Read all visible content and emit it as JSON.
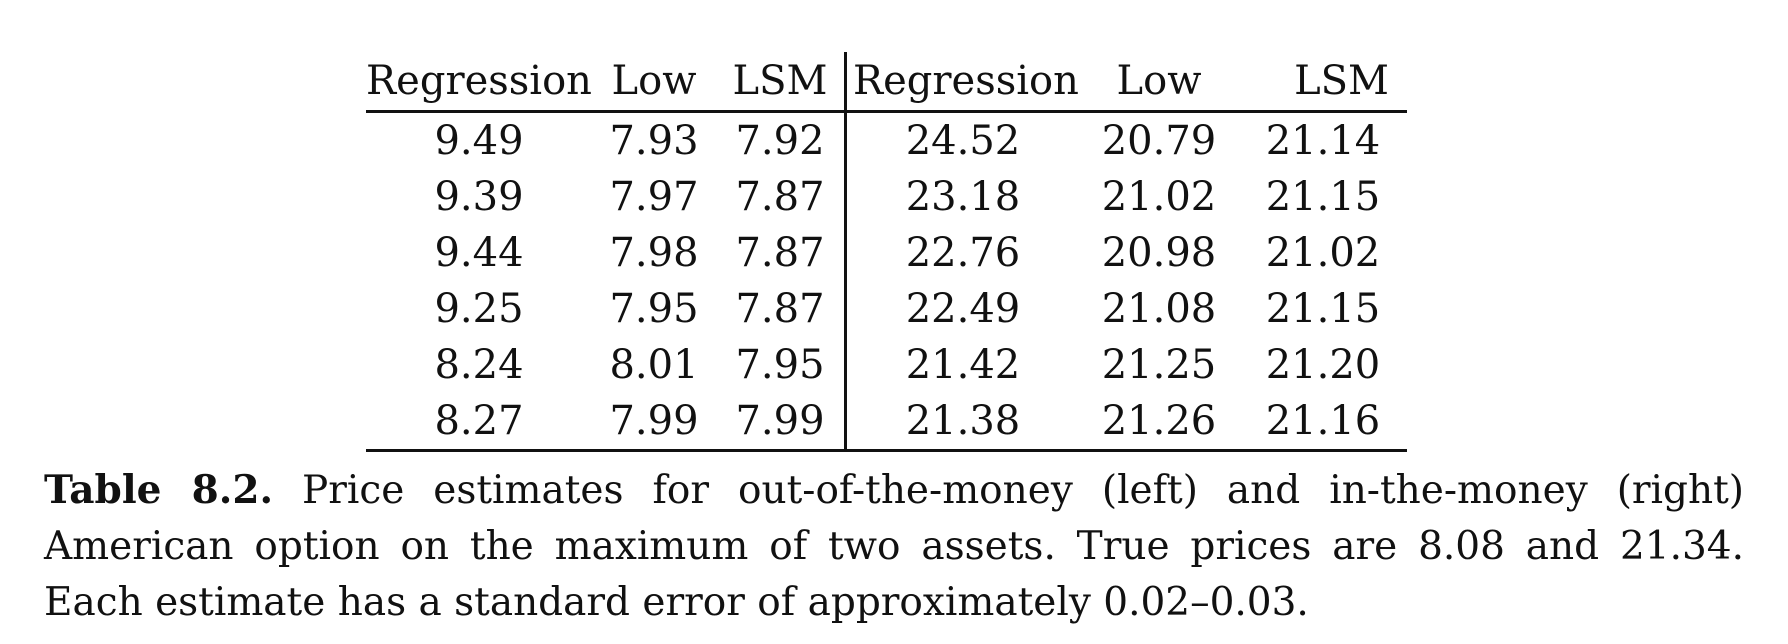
{
  "table": {
    "headers": [
      "Regression",
      "Low",
      "LSM",
      "Regression",
      "Low",
      "LSM"
    ],
    "rows": [
      [
        "9.49",
        "7.93",
        "7.92",
        "24.52",
        "20.79",
        "21.14"
      ],
      [
        "9.39",
        "7.97",
        "7.87",
        "23.18",
        "21.02",
        "21.15"
      ],
      [
        "9.44",
        "7.98",
        "7.87",
        "22.76",
        "20.98",
        "21.02"
      ],
      [
        "9.25",
        "7.95",
        "7.87",
        "22.49",
        "21.08",
        "21.15"
      ],
      [
        "8.24",
        "8.01",
        "7.95",
        "21.42",
        "21.25",
        "21.20"
      ],
      [
        "8.27",
        "7.99",
        "7.99",
        "21.38",
        "21.26",
        "21.16"
      ]
    ]
  },
  "caption": {
    "label": "Table 8.2.",
    "text": "Price estimates for out-of-the-money (left) and in-the-money (right) American option on the maximum of two assets. True prices are 8.08 and 21.34. Each estimate has a standard error of approximately 0.02–0.03."
  }
}
